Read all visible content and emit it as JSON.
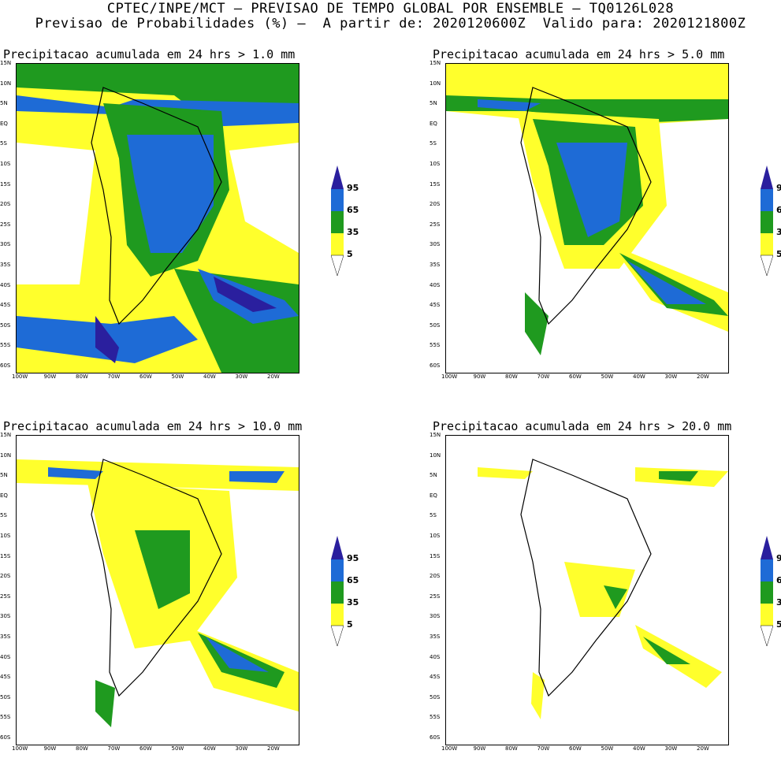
{
  "header": {
    "line1": "CPTEC/INPE/MCT — PREVISAO DE TEMPO GLOBAL POR ENSEMBLE — TQ0126L028",
    "line2": "Previsao de Probabilidades (%) —  A partir de: 2020120600Z  Valido para: 2020121800Z"
  },
  "panels": [
    {
      "title": "Precipitacao acumulada em 24 hrs > 1.0 mm"
    },
    {
      "title": "Precipitacao acumulada em 24 hrs > 5.0 mm"
    },
    {
      "title": "Precipitacao acumulada em 24 hrs > 10.0 mm"
    },
    {
      "title": "Precipitacao acumulada em 24 hrs > 20.0 mm"
    }
  ],
  "lat_labels": [
    "15N",
    "10N",
    "5N",
    "EQ",
    "5S",
    "10S",
    "15S",
    "20S",
    "25S",
    "30S",
    "35S",
    "40S",
    "45S",
    "50S",
    "55S",
    "60S"
  ],
  "lon_labels": [
    "100W",
    "90W",
    "80W",
    "70W",
    "60W",
    "50W",
    "40W",
    "30W",
    "20W"
  ],
  "colorbar": {
    "levels": [
      "95",
      "65",
      "35",
      "5"
    ],
    "colors": {
      "c95": "#2a1f9e",
      "c65": "#1e6bd6",
      "c35": "#1f9a1f",
      "c5": "#ffff2c"
    }
  }
}
